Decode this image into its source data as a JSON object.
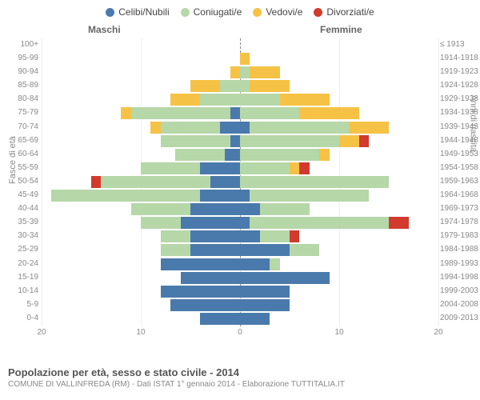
{
  "legend": [
    {
      "label": "Celibi/Nubili",
      "color": "#4a7aab"
    },
    {
      "label": "Coniugati/e",
      "color": "#b6d7a8"
    },
    {
      "label": "Vedovi/e",
      "color": "#f6c245"
    },
    {
      "label": "Divorziati/e",
      "color": "#d23a2e"
    }
  ],
  "headers": {
    "male": "Maschi",
    "female": "Femmine"
  },
  "axis_labels": {
    "left": "Fasce di età",
    "right": "Anni di nascita"
  },
  "title": "Popolazione per età, sesso e stato civile - 2014",
  "subtitle": "COMUNE DI VALLINFREDA (RM) - Dati ISTAT 1° gennaio 2014 - Elaborazione TUTTITALIA.IT",
  "x_axis": {
    "max": 20,
    "ticks": [
      20,
      10,
      0,
      10,
      20
    ]
  },
  "colors": {
    "celibi": "#4a7aab",
    "coniugati": "#b6d7a8",
    "vedovi": "#f6c245",
    "divorziati": "#d23a2e",
    "grid": "#eeeeee",
    "center": "#888888",
    "bg": "#ffffff"
  },
  "rows": [
    {
      "age": "100+",
      "year": "≤ 1913",
      "m": {
        "c": 0,
        "co": 0,
        "v": 0,
        "d": 0
      },
      "f": {
        "c": 0,
        "co": 0,
        "v": 0,
        "d": 0
      }
    },
    {
      "age": "95-99",
      "year": "1914-1918",
      "m": {
        "c": 0,
        "co": 0,
        "v": 0,
        "d": 0
      },
      "f": {
        "c": 0,
        "co": 0,
        "v": 1,
        "d": 0
      }
    },
    {
      "age": "90-94",
      "year": "1919-1923",
      "m": {
        "c": 0,
        "co": 0,
        "v": 1,
        "d": 0
      },
      "f": {
        "c": 0,
        "co": 1,
        "v": 3,
        "d": 0
      }
    },
    {
      "age": "85-89",
      "year": "1924-1928",
      "m": {
        "c": 0,
        "co": 2,
        "v": 3,
        "d": 0
      },
      "f": {
        "c": 0,
        "co": 1,
        "v": 4,
        "d": 0
      }
    },
    {
      "age": "80-84",
      "year": "1929-1933",
      "m": {
        "c": 0,
        "co": 4,
        "v": 3,
        "d": 0
      },
      "f": {
        "c": 0,
        "co": 4,
        "v": 5,
        "d": 0
      }
    },
    {
      "age": "75-79",
      "year": "1934-1938",
      "m": {
        "c": 1,
        "co": 10,
        "v": 1,
        "d": 0
      },
      "f": {
        "c": 0,
        "co": 6,
        "v": 6,
        "d": 0
      }
    },
    {
      "age": "70-74",
      "year": "1939-1943",
      "m": {
        "c": 2,
        "co": 6,
        "v": 1,
        "d": 0
      },
      "f": {
        "c": 1,
        "co": 10,
        "v": 4,
        "d": 0
      }
    },
    {
      "age": "65-69",
      "year": "1944-1948",
      "m": {
        "c": 1,
        "co": 7,
        "v": 0,
        "d": 0
      },
      "f": {
        "c": 0,
        "co": 10,
        "v": 2,
        "d": 1
      }
    },
    {
      "age": "60-64",
      "year": "1949-1953",
      "m": {
        "c": 1.5,
        "co": 5,
        "v": 0,
        "d": 0
      },
      "f": {
        "c": 0,
        "co": 8,
        "v": 1,
        "d": 0
      }
    },
    {
      "age": "55-59",
      "year": "1954-1958",
      "m": {
        "c": 4,
        "co": 6,
        "v": 0,
        "d": 0
      },
      "f": {
        "c": 0,
        "co": 5,
        "v": 1,
        "d": 1
      }
    },
    {
      "age": "50-54",
      "year": "1959-1963",
      "m": {
        "c": 3,
        "co": 11,
        "v": 0,
        "d": 1
      },
      "f": {
        "c": 0,
        "co": 15,
        "v": 0,
        "d": 0
      }
    },
    {
      "age": "45-49",
      "year": "1964-1968",
      "m": {
        "c": 4,
        "co": 15,
        "v": 0,
        "d": 0
      },
      "f": {
        "c": 1,
        "co": 12,
        "v": 0,
        "d": 0
      }
    },
    {
      "age": "40-44",
      "year": "1969-1973",
      "m": {
        "c": 5,
        "co": 6,
        "v": 0,
        "d": 0
      },
      "f": {
        "c": 2,
        "co": 5,
        "v": 0,
        "d": 0
      }
    },
    {
      "age": "35-39",
      "year": "1974-1978",
      "m": {
        "c": 6,
        "co": 4,
        "v": 0,
        "d": 0
      },
      "f": {
        "c": 1,
        "co": 14,
        "v": 0,
        "d": 2
      }
    },
    {
      "age": "30-34",
      "year": "1979-1983",
      "m": {
        "c": 5,
        "co": 3,
        "v": 0,
        "d": 0
      },
      "f": {
        "c": 2,
        "co": 3,
        "v": 0,
        "d": 1
      }
    },
    {
      "age": "25-29",
      "year": "1984-1988",
      "m": {
        "c": 5,
        "co": 3,
        "v": 0,
        "d": 0
      },
      "f": {
        "c": 5,
        "co": 3,
        "v": 0,
        "d": 0
      }
    },
    {
      "age": "20-24",
      "year": "1989-1993",
      "m": {
        "c": 8,
        "co": 0,
        "v": 0,
        "d": 0
      },
      "f": {
        "c": 3,
        "co": 1,
        "v": 0,
        "d": 0
      }
    },
    {
      "age": "15-19",
      "year": "1994-1998",
      "m": {
        "c": 6,
        "co": 0,
        "v": 0,
        "d": 0
      },
      "f": {
        "c": 9,
        "co": 0,
        "v": 0,
        "d": 0
      }
    },
    {
      "age": "10-14",
      "year": "1999-2003",
      "m": {
        "c": 8,
        "co": 0,
        "v": 0,
        "d": 0
      },
      "f": {
        "c": 5,
        "co": 0,
        "v": 0,
        "d": 0
      }
    },
    {
      "age": "5-9",
      "year": "2004-2008",
      "m": {
        "c": 7,
        "co": 0,
        "v": 0,
        "d": 0
      },
      "f": {
        "c": 5,
        "co": 0,
        "v": 0,
        "d": 0
      }
    },
    {
      "age": "0-4",
      "year": "2009-2013",
      "m": {
        "c": 4,
        "co": 0,
        "v": 0,
        "d": 0
      },
      "f": {
        "c": 3,
        "co": 0,
        "v": 0,
        "d": 0
      }
    }
  ]
}
